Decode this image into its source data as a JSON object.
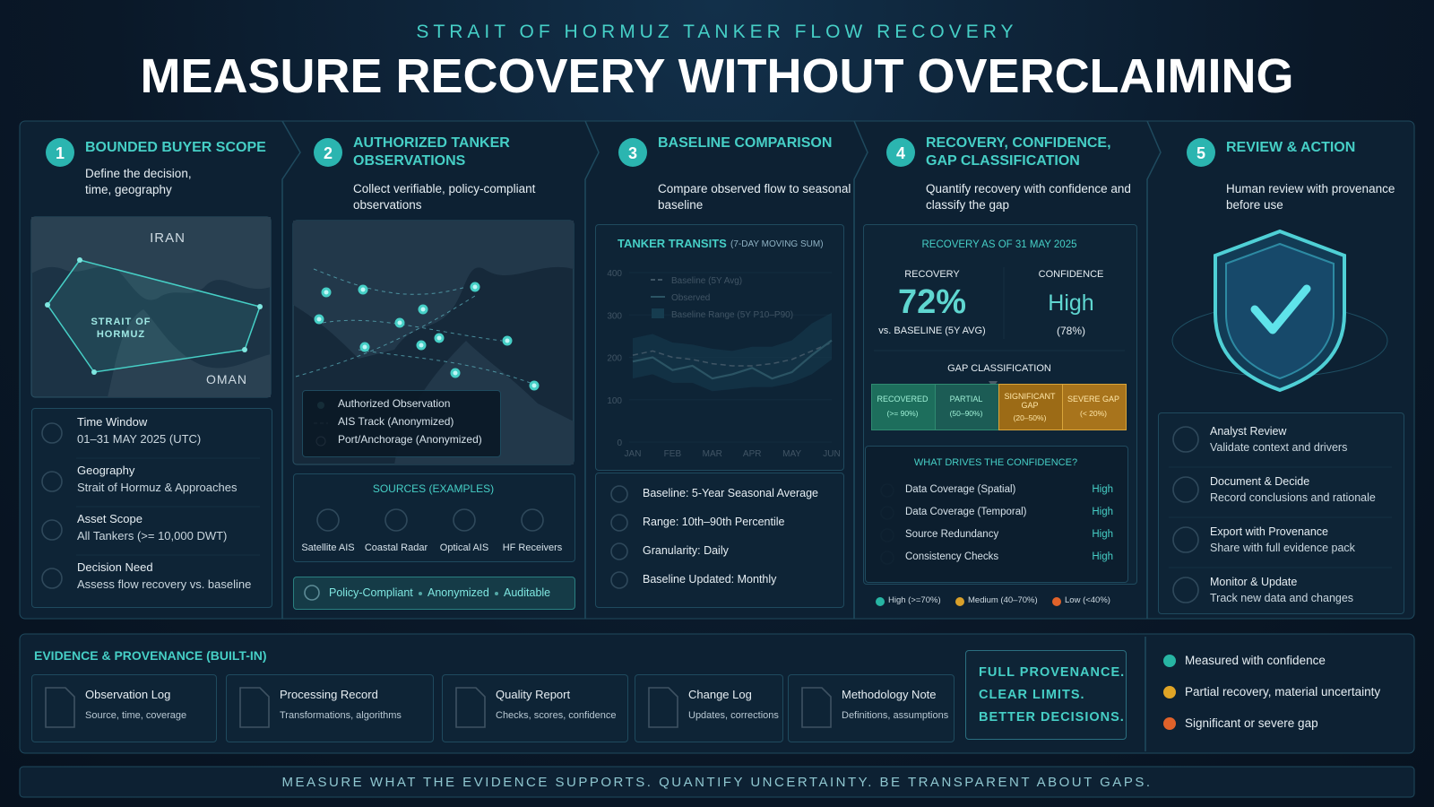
{
  "header": {
    "kicker": "STRAIT OF HORMUZ TANKER FLOW RECOVERY",
    "title": "MEASURE RECOVERY WITHOUT OVERCLAIMING"
  },
  "steps": [
    {
      "number": "1",
      "title": "BOUNDED BUYER SCOPE",
      "subtitle": "Define the decision, time, geography"
    },
    {
      "number": "2",
      "title": "AUTHORIZED TANKER OBSERVATIONS",
      "subtitle": "Collect verifiable, policy-compliant observations"
    },
    {
      "number": "3",
      "title": "BASELINE COMPARISON",
      "subtitle": "Compare observed flow to seasonal baseline"
    },
    {
      "number": "4",
      "title": "RECOVERY, CONFIDENCE, GAP CLASSIFICATION",
      "subtitle": "Quantify recovery with confidence and classify the gap"
    },
    {
      "number": "5",
      "title": "REVIEW & ACTION",
      "subtitle": "Human review with provenance before use"
    }
  ],
  "scope": {
    "map_labels": [
      "IRAN",
      "STRAIT OF HORMUZ",
      "OMAN"
    ],
    "items": [
      {
        "label": "Time Window",
        "value": "01–31 MAY 2025 (UTC)"
      },
      {
        "label": "Geography",
        "value": "Strait of Hormuz & Approaches"
      },
      {
        "label": "Asset Scope",
        "value": "All Tankers (>= 10,000 DWT)"
      },
      {
        "label": "Decision Need",
        "value": "Assess flow recovery vs. baseline"
      }
    ]
  },
  "observations": {
    "legend": [
      "Authorized Observation",
      "AIS Track (Anonymized)",
      "Port/Anchorage (Anonymized)"
    ],
    "sources_title": "SOURCES (EXAMPLES)",
    "sources": [
      "Satellite AIS",
      "Coastal Radar",
      "Optical AIS",
      "HF Receivers"
    ],
    "badge": [
      "Policy-Compliant",
      "Anonymized",
      "Auditable"
    ]
  },
  "chart_data": {
    "type": "line",
    "title": "TANKER TRANSITS",
    "subtitle": "(7-DAY MOVING SUM)",
    "categories": [
      "JAN",
      null,
      "FEB",
      null,
      "MAR",
      null,
      "APR",
      null,
      "MAY",
      null,
      "JUN"
    ],
    "ylim": [
      0,
      400
    ],
    "yticks": [
      0,
      100,
      200,
      300,
      400
    ],
    "series": [
      {
        "name": "Baseline (5Y Avg)",
        "color": "#cfe3ea",
        "values": [
          205,
          215,
          200,
          195,
          185,
          180,
          180,
          185,
          195,
          215,
          235
        ]
      },
      {
        "name": "Observed",
        "color": "#7fe0e6",
        "values": [
          190,
          200,
          170,
          180,
          150,
          160,
          175,
          150,
          165,
          205,
          240
        ]
      },
      {
        "name": "Baseline Range (5Y P10–P90)",
        "color": "#2f7f93",
        "low": [
          150,
          160,
          140,
          140,
          120,
          125,
          130,
          130,
          140,
          160,
          195
        ],
        "high": [
          245,
          255,
          235,
          230,
          220,
          215,
          225,
          225,
          240,
          280,
          305
        ]
      }
    ]
  },
  "baseline_notes": [
    "Baseline: 5-Year Seasonal Average",
    "Range: 10th–90th Percentile",
    "Granularity: Daily",
    "Baseline Updated: Monthly"
  ],
  "recovery": {
    "title": "RECOVERY AS OF 31 MAY 2025",
    "recovery_label": "RECOVERY",
    "recovery_value": "72%",
    "recovery_note": "vs. BASELINE (5Y AVG)",
    "confidence_label": "CONFIDENCE",
    "confidence_value": "High",
    "confidence_note": "(78%)",
    "gap_title": "GAP CLASSIFICATION",
    "gaps": [
      {
        "label": "RECOVERED",
        "range": "(>= 90%)",
        "color": "#1d6e5c"
      },
      {
        "label": "PARTIAL",
        "range": "(50–90%)",
        "color": "#1c5c55"
      },
      {
        "label": "SIGNIFICANT GAP",
        "range": "(20–50%)",
        "color": "#9c6b16"
      },
      {
        "label": "SEVERE GAP",
        "range": "(< 20%)",
        "color": "#a8741c"
      }
    ],
    "drivers_title": "WHAT DRIVES THE CONFIDENCE?",
    "drivers": [
      {
        "label": "Data Coverage (Spatial)",
        "level": "High"
      },
      {
        "label": "Data Coverage (Temporal)",
        "level": "High"
      },
      {
        "label": "Source Redundancy",
        "level": "High"
      },
      {
        "label": "Consistency Checks",
        "level": "High"
      }
    ],
    "legend": [
      {
        "label": "High (>=70%)",
        "color": "#27b5a3"
      },
      {
        "label": "Medium (40–70%)",
        "color": "#d9a02a"
      },
      {
        "label": "Low (<40%)",
        "color": "#e0622a"
      }
    ]
  },
  "review": [
    {
      "title": "Analyst Review",
      "desc": "Validate context and drivers"
    },
    {
      "title": "Document & Decide",
      "desc": "Record conclusions and rationale"
    },
    {
      "title": "Export with Provenance",
      "desc": "Share with full evidence pack"
    },
    {
      "title": "Monitor & Update",
      "desc": "Track new data and changes"
    }
  ],
  "evidence": {
    "title": "EVIDENCE & PROVENANCE (BUILT-IN)",
    "docs": [
      {
        "title": "Observation Log",
        "desc": "Source, time, coverage"
      },
      {
        "title": "Processing Record",
        "desc": "Transformations, algorithms"
      },
      {
        "title": "Quality Report",
        "desc": "Checks, scores, confidence"
      },
      {
        "title": "Change Log",
        "desc": "Updates, corrections"
      },
      {
        "title": "Methodology Note",
        "desc": "Definitions, assumptions"
      }
    ],
    "callout": [
      "FULL PROVENANCE.",
      "CLEAR LIMITS.",
      "BETTER DECISIONS."
    ],
    "legend": [
      {
        "label": "Measured with confidence",
        "color": "#27b5a3"
      },
      {
        "label": "Partial recovery, material uncertainty",
        "color": "#e0a526"
      },
      {
        "label": "Significant or severe gap",
        "color": "#e0622a"
      }
    ]
  },
  "footer": "MEASURE WHAT THE EVIDENCE SUPPORTS. QUANTIFY UNCERTAINTY. BE TRANSPARENT ABOUT GAPS."
}
